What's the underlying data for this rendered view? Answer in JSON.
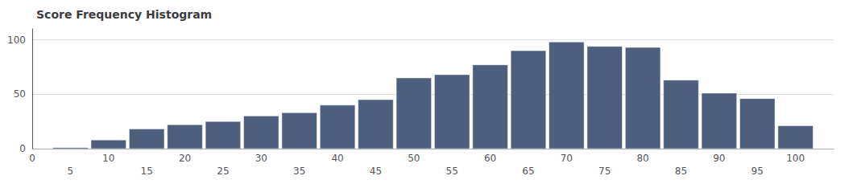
{
  "chart_data": {
    "type": "bar",
    "title": "Score Frequency Histogram",
    "x": [
      5,
      10,
      15,
      20,
      25,
      30,
      35,
      40,
      45,
      50,
      55,
      60,
      65,
      70,
      75,
      80,
      85,
      90,
      95,
      100
    ],
    "values": [
      1,
      8,
      18,
      22,
      25,
      30,
      33,
      40,
      45,
      65,
      68,
      77,
      90,
      98,
      94,
      93,
      63,
      51,
      46,
      21
    ],
    "color": "#4d5f7c",
    "xlim": [
      0,
      105
    ],
    "xticks": [
      0,
      10,
      20,
      30,
      40,
      50,
      60,
      70,
      80,
      90,
      100
    ],
    "x2ticks": [
      5,
      15,
      25,
      35,
      45,
      55,
      65,
      75,
      85,
      95
    ],
    "ylim": [
      0,
      110
    ],
    "yticks": [
      0,
      50,
      100
    ],
    "grid": true
  }
}
